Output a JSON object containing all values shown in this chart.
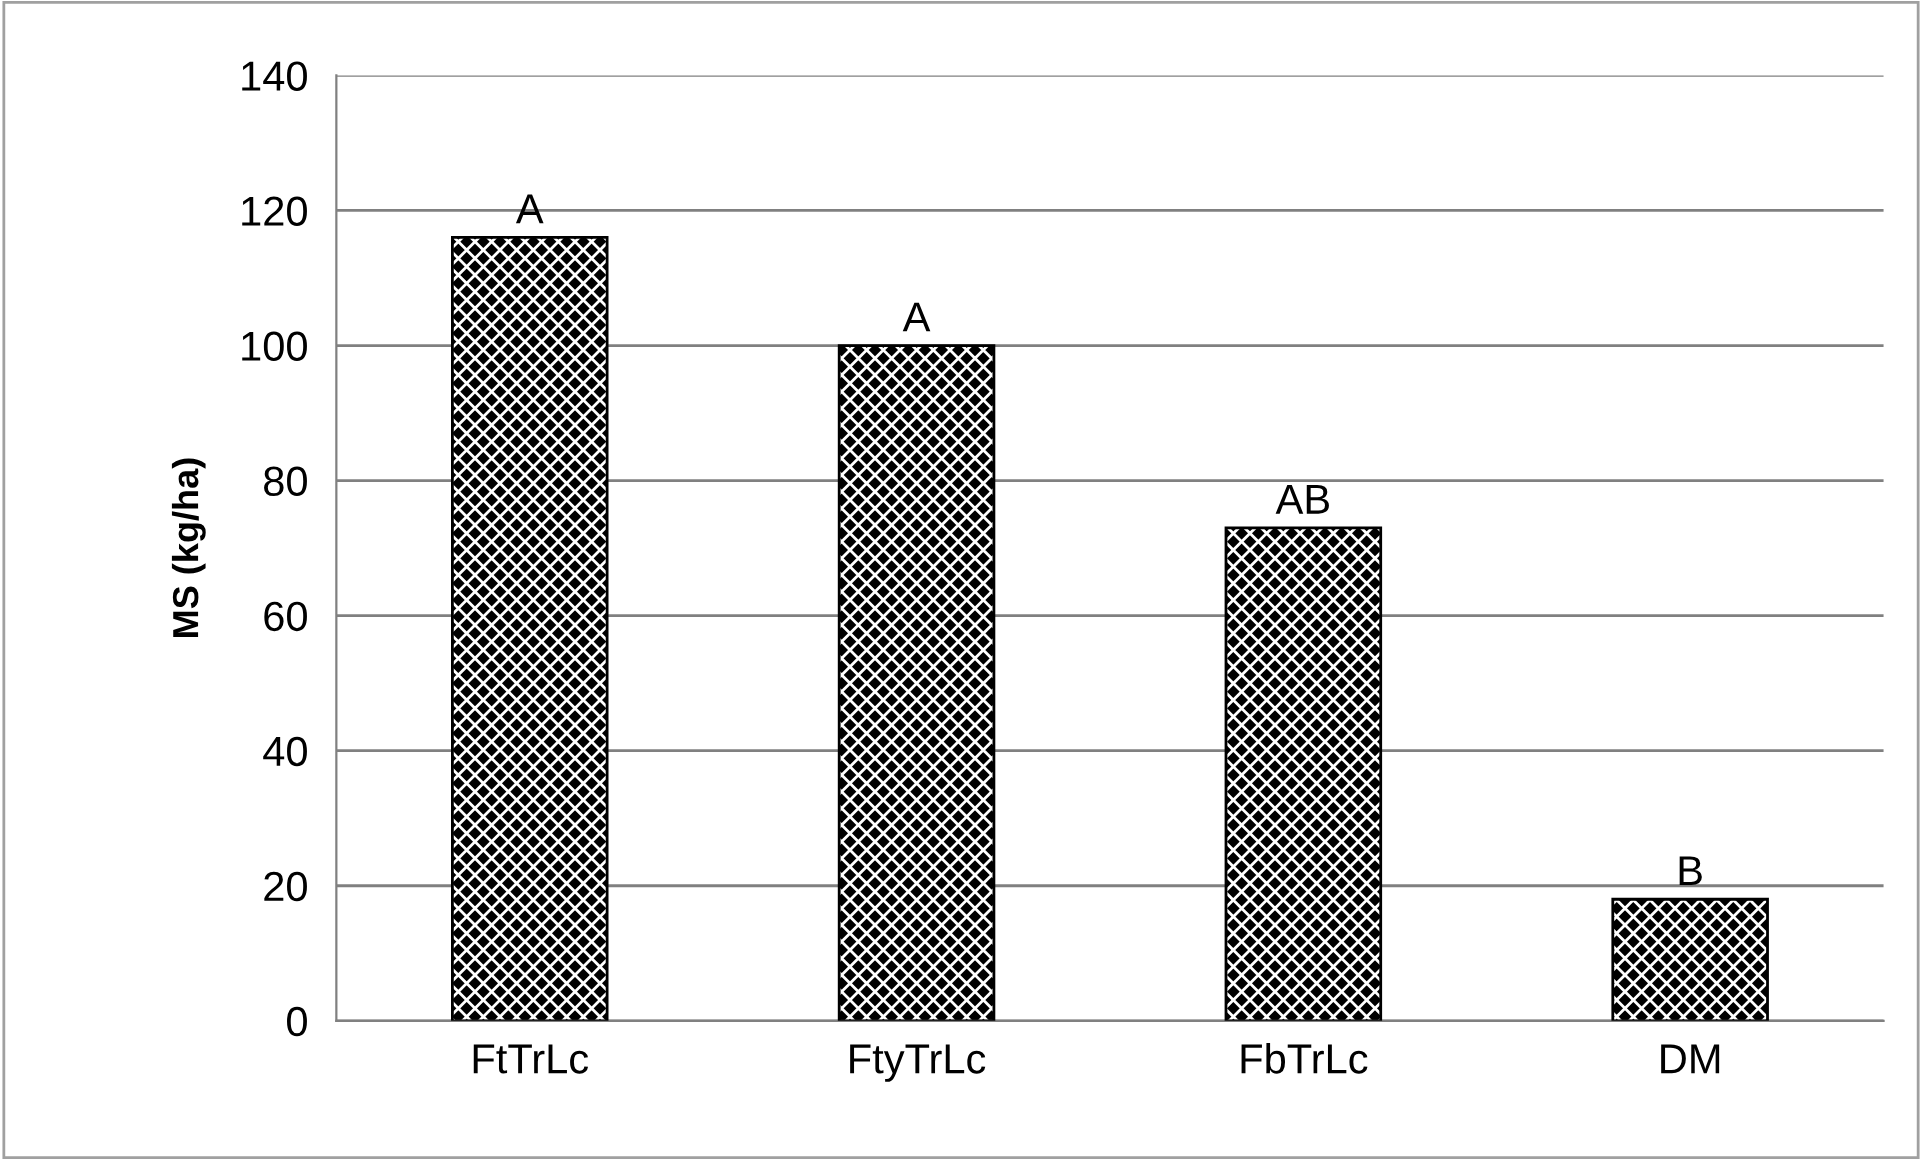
{
  "chart_data": {
    "type": "bar",
    "ylabel": "MS (kg/ha)",
    "categories": [
      "FtTrLc",
      "FtyTrLc",
      "FbTrLc",
      "DM"
    ],
    "values": [
      116,
      100,
      73,
      18
    ],
    "color": "#000000",
    "ylim": [
      0,
      140
    ],
    "yticks": [
      0,
      20,
      40,
      60,
      80,
      100,
      120,
      140
    ],
    "grid": "y",
    "annotations": [
      {
        "text": "A",
        "x": "FtTrLc",
        "y": 116
      },
      {
        "text": "A",
        "x": "FtyTrLc",
        "y": 100
      },
      {
        "text": "AB",
        "x": "FbTrLc",
        "y": 73
      },
      {
        "text": "B",
        "x": "DM",
        "y": 18
      }
    ]
  }
}
